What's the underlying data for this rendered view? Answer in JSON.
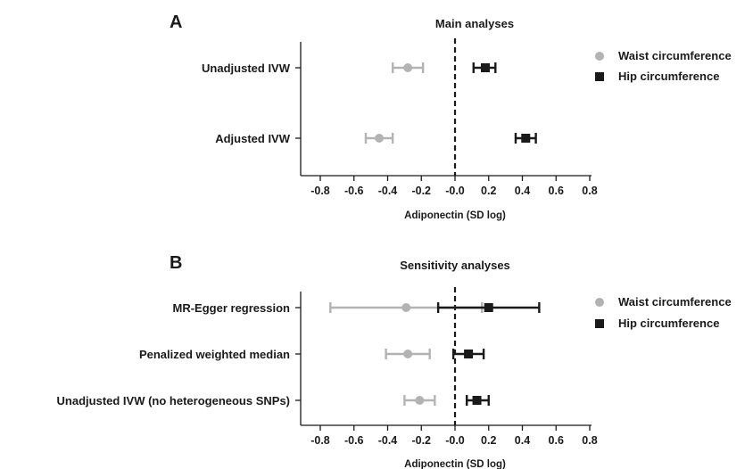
{
  "colors": {
    "waist": "#b3b3b3",
    "hip": "#1a1a1a",
    "axis": "#1a1a1a"
  },
  "chart_data": [
    {
      "type": "forest",
      "panel_letter": "A",
      "title": "Main analyses",
      "xlabel": "Adiponectin (SD log)",
      "xlim": [
        -0.9,
        0.8
      ],
      "xticks": [
        -0.8,
        -0.6,
        -0.4,
        -0.2,
        -0.0,
        0.2,
        0.4,
        0.6,
        0.8
      ],
      "xtick_labels": [
        "-0.8",
        "-0.6",
        "-0.4",
        "-0.2",
        "-0.0",
        "0.2",
        "0.4",
        "0.6",
        "0.8"
      ],
      "reference_line": 0,
      "legend_position": "top-right",
      "rows": [
        "Unadjusted IVW",
        "Adjusted IVW"
      ],
      "series": [
        {
          "name": "Waist circumference",
          "marker": "circle",
          "color": "#b3b3b3",
          "estimates": [
            -0.28,
            -0.45
          ],
          "lower": [
            -0.37,
            -0.53
          ],
          "upper": [
            -0.19,
            -0.37
          ]
        },
        {
          "name": "Hip circumference",
          "marker": "square",
          "color": "#1a1a1a",
          "estimates": [
            0.18,
            0.42
          ],
          "lower": [
            0.11,
            0.36
          ],
          "upper": [
            0.24,
            0.48
          ]
        }
      ]
    },
    {
      "type": "forest",
      "panel_letter": "B",
      "title": "Sensitivity analyses",
      "xlabel": "Adiponectin (SD log)",
      "xlim": [
        -0.9,
        0.8
      ],
      "xticks": [
        -0.8,
        -0.6,
        -0.4,
        -0.2,
        -0.0,
        0.2,
        0.4,
        0.6,
        0.8
      ],
      "xtick_labels": [
        "-0.8",
        "-0.6",
        "-0.4",
        "-0.2",
        "-0.0",
        "0.2",
        "0.4",
        "0.6",
        "0.8"
      ],
      "reference_line": 0,
      "legend_position": "top-right",
      "rows": [
        "MR-Egger regression",
        "Penalized weighted median",
        "Unadjusted IVW (no heterogeneous SNPs)"
      ],
      "series": [
        {
          "name": "Waist circumference",
          "marker": "circle",
          "color": "#b3b3b3",
          "estimates": [
            -0.29,
            -0.28,
            -0.21
          ],
          "lower": [
            -0.74,
            -0.41,
            -0.3
          ],
          "upper": [
            0.16,
            -0.15,
            -0.12
          ]
        },
        {
          "name": "Hip circumference",
          "marker": "square",
          "color": "#1a1a1a",
          "estimates": [
            0.2,
            0.08,
            0.13
          ],
          "lower": [
            -0.1,
            -0.01,
            0.07
          ],
          "upper": [
            0.5,
            0.17,
            0.2
          ]
        }
      ]
    }
  ]
}
